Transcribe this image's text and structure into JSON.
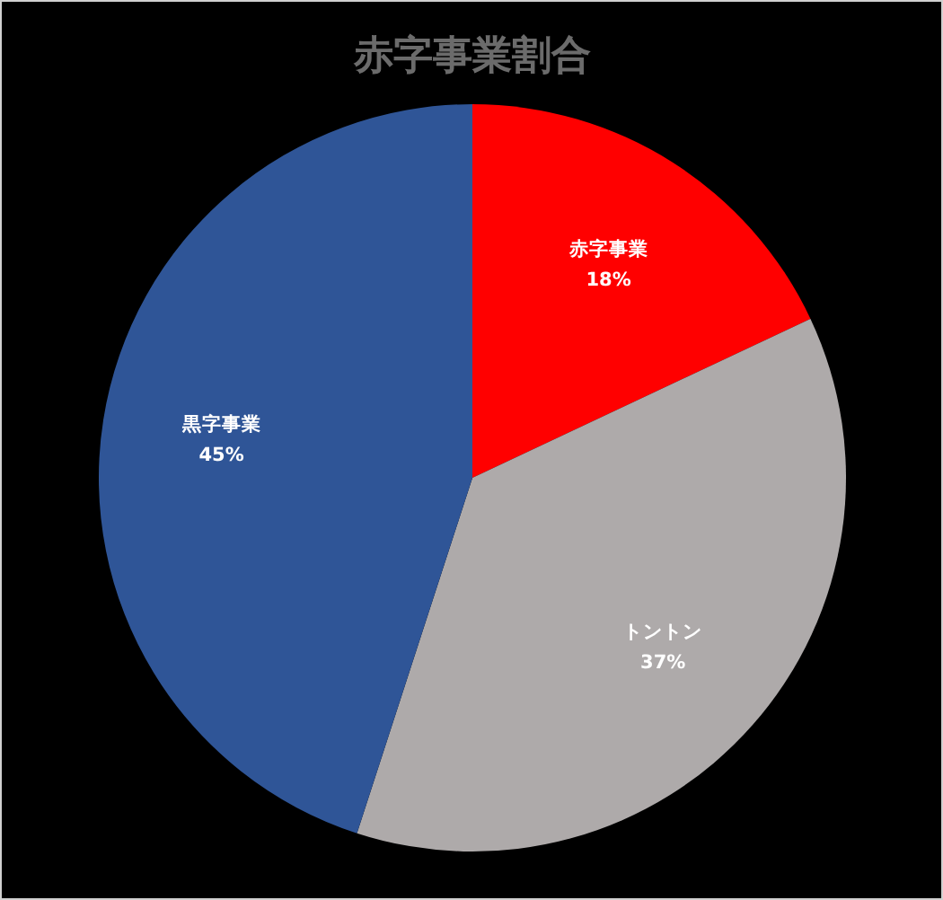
{
  "chart_data": {
    "type": "pie",
    "title": "赤字事業割合",
    "categories": [
      "赤字事業",
      "トントン",
      "黒字事業"
    ],
    "values": [
      18,
      37,
      45
    ],
    "colors": [
      "#ff0000",
      "#aeaaaa",
      "#2f5597"
    ],
    "value_labels": [
      "18%",
      "37%",
      "45%"
    ]
  }
}
